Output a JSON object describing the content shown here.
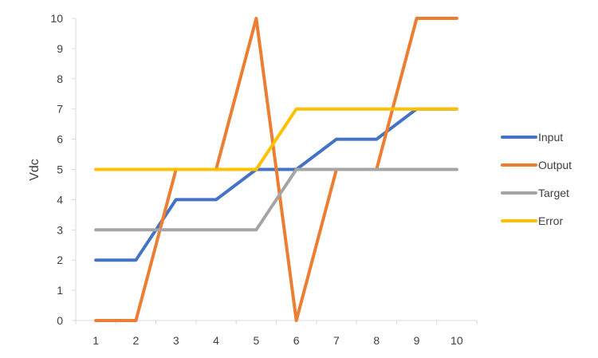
{
  "chart_data": {
    "type": "line",
    "title": "",
    "xlabel": "",
    "ylabel": "Vdc",
    "x": [
      1,
      2,
      3,
      4,
      5,
      6,
      7,
      8,
      9,
      10
    ],
    "x_tick_labels": [
      "1",
      "2",
      "3",
      "4",
      "5",
      "6",
      "7",
      "8",
      "9",
      "10"
    ],
    "y_tick_labels": [
      "0",
      "1",
      "2",
      "3",
      "4",
      "5",
      "6",
      "7",
      "8",
      "9",
      "10"
    ],
    "ylim": [
      0,
      10
    ],
    "grid": false,
    "legend_position": "right",
    "series": [
      {
        "name": "Input",
        "color": "#4472C4",
        "values": [
          2,
          2,
          4,
          4,
          5,
          5,
          6,
          6,
          7,
          7
        ]
      },
      {
        "name": "Output",
        "color": "#ED7D31",
        "values": [
          0,
          0,
          5,
          5,
          10,
          0,
          5,
          5,
          10,
          10
        ]
      },
      {
        "name": "Target",
        "color": "#A5A5A5",
        "values": [
          3,
          3,
          3,
          3,
          3,
          5,
          5,
          5,
          5,
          5
        ]
      },
      {
        "name": "Error",
        "color": "#FFC000",
        "values": [
          5,
          5,
          5,
          5,
          5,
          7,
          7,
          7,
          7,
          7
        ]
      }
    ]
  }
}
